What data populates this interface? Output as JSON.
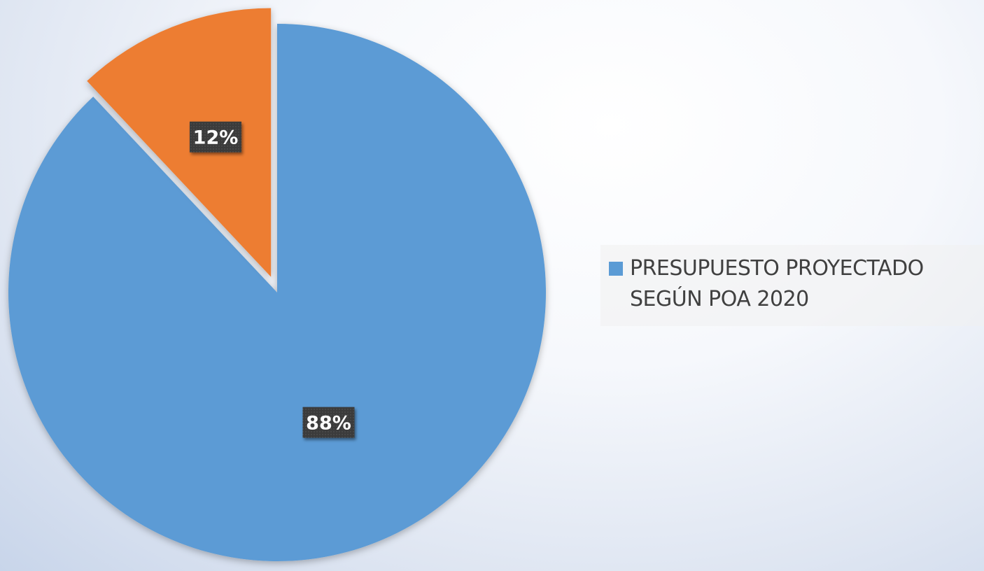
{
  "chart_data": {
    "type": "pie",
    "title": "",
    "categories": [
      "PRESUPUESTO PROYECTADO\nSEGÚN POA 2020",
      ""
    ],
    "values": [
      88,
      12
    ],
    "data_labels": [
      "88%",
      "12%"
    ],
    "colors": [
      "#5b9bd5",
      "#ed7d31"
    ],
    "exploded_slice": 1,
    "legend_position": "right"
  },
  "legend": {
    "items": [
      {
        "label": "PRESUPUESTO PROYECTADO\nSEGÚN POA 2020",
        "color": "#5b9bd5"
      }
    ]
  }
}
